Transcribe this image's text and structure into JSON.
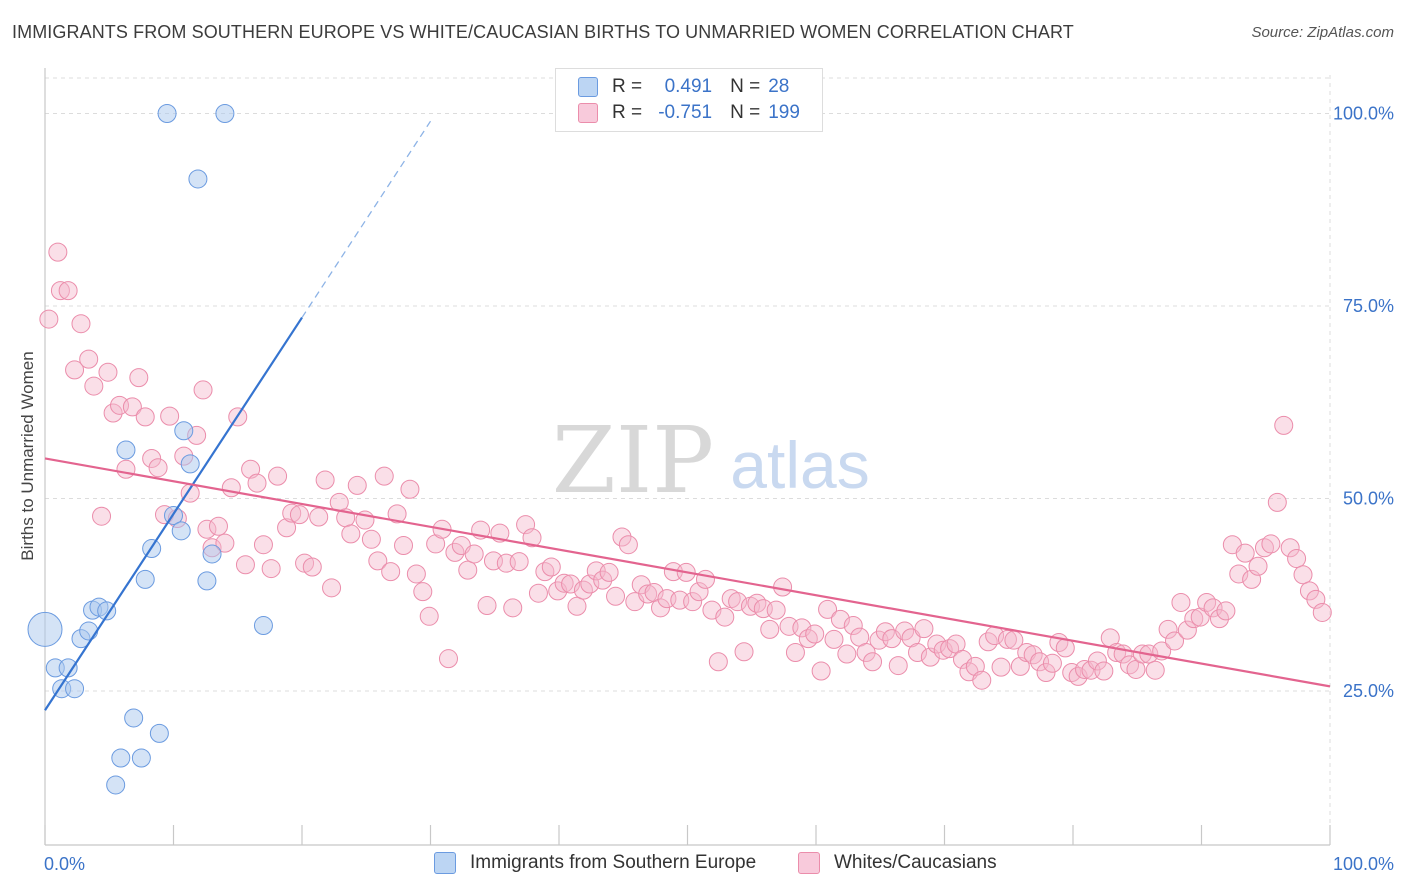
{
  "title": "IMMIGRANTS FROM SOUTHERN EUROPE VS WHITE/CAUCASIAN BIRTHS TO UNMARRIED WOMEN CORRELATION CHART",
  "source": "Source: ZipAtlas.com",
  "watermark": {
    "zip": "ZIP",
    "atlas": "atlas"
  },
  "legend": {
    "rows": [
      {
        "r_label": "R =",
        "r_value": "0.491",
        "n_label": "N =",
        "n_value": "28"
      },
      {
        "r_label": "R =",
        "r_value": "-0.751",
        "n_label": "N =",
        "n_value": "199"
      }
    ]
  },
  "bottom_legend": {
    "series1": "Immigrants from Southern Europe",
    "series2": "Whites/Caucasians"
  },
  "colors": {
    "blue_fill": "#a9c8ee",
    "blue_stroke": "#6b9be0",
    "blue_line": "#3574d0",
    "pink_fill": "#f4b9cc",
    "pink_stroke": "#eb8dab",
    "pink_line": "#e3648f",
    "tick_text": "#3b73c8",
    "grid": "#dcdcdc"
  },
  "chart_data": {
    "type": "scatter",
    "title": "IMMIGRANTS FROM SOUTHERN EUROPE VS WHITE/CAUCASIAN BIRTHS TO UNMARRIED WOMEN CORRELATION CHART",
    "xlabel": "Immigrants from Southern Europe",
    "ylabel": "Births to Unmarried Women",
    "xlim": [
      0,
      100
    ],
    "ylim": [
      5,
      105
    ],
    "x_tick_labels": [
      "0.0%",
      "100.0%"
    ],
    "y_ticks": [
      25,
      50,
      75,
      100
    ],
    "y_tick_labels": [
      "25.0%",
      "50.0%",
      "75.0%",
      "100.0%"
    ],
    "grid": true,
    "series": [
      {
        "name": "Immigrants from Southern Europe",
        "R": 0.491,
        "N": 28,
        "trend": {
          "x0": 0.0,
          "y0": 22.5,
          "x1": 20.0,
          "y1": 73.5,
          "dash_x1": 30.0,
          "dash_y1": 99.0
        },
        "points": [
          [
            0.0,
            33.0
          ],
          [
            0.8,
            28.0
          ],
          [
            1.3,
            25.3
          ],
          [
            1.8,
            28.0
          ],
          [
            2.3,
            25.3
          ],
          [
            2.8,
            31.8
          ],
          [
            3.4,
            32.8
          ],
          [
            3.7,
            35.5
          ],
          [
            4.2,
            35.9
          ],
          [
            4.8,
            35.4
          ],
          [
            5.5,
            12.8
          ],
          [
            5.9,
            16.3
          ],
          [
            6.3,
            56.3
          ],
          [
            6.9,
            21.5
          ],
          [
            7.5,
            16.3
          ],
          [
            7.8,
            39.5
          ],
          [
            8.3,
            43.5
          ],
          [
            8.9,
            19.5
          ],
          [
            9.5,
            100.0
          ],
          [
            10.0,
            47.8
          ],
          [
            10.6,
            45.8
          ],
          [
            10.8,
            58.8
          ],
          [
            11.3,
            54.5
          ],
          [
            11.9,
            91.5
          ],
          [
            12.6,
            39.3
          ],
          [
            13.0,
            42.8
          ],
          [
            14.0,
            100.0
          ],
          [
            17.0,
            33.5
          ]
        ]
      },
      {
        "name": "Whites/Caucasians",
        "R": -0.751,
        "N": 199,
        "trend": {
          "x0": 0.0,
          "y0": 55.2,
          "x1": 100.0,
          "y1": 25.6
        },
        "points": [
          [
            0.3,
            73.3
          ],
          [
            1.0,
            82.0
          ],
          [
            1.2,
            77.0
          ],
          [
            1.8,
            77.0
          ],
          [
            2.3,
            66.7
          ],
          [
            2.8,
            72.7
          ],
          [
            3.4,
            68.1
          ],
          [
            3.8,
            64.6
          ],
          [
            4.4,
            47.7
          ],
          [
            4.9,
            66.4
          ],
          [
            5.3,
            61.1
          ],
          [
            5.8,
            62.1
          ],
          [
            6.3,
            53.8
          ],
          [
            6.8,
            61.9
          ],
          [
            7.3,
            65.7
          ],
          [
            7.8,
            60.6
          ],
          [
            8.3,
            55.2
          ],
          [
            8.8,
            54.0
          ],
          [
            9.3,
            47.9
          ],
          [
            9.7,
            60.7
          ],
          [
            10.3,
            47.4
          ],
          [
            10.8,
            55.5
          ],
          [
            11.3,
            50.7
          ],
          [
            11.8,
            58.2
          ],
          [
            12.3,
            64.1
          ],
          [
            12.6,
            46.0
          ],
          [
            13.0,
            43.6
          ],
          [
            13.5,
            46.4
          ],
          [
            14.0,
            44.2
          ],
          [
            14.5,
            51.4
          ],
          [
            15.0,
            60.6
          ],
          [
            15.6,
            41.4
          ],
          [
            16.0,
            53.8
          ],
          [
            16.5,
            52.0
          ],
          [
            17.0,
            44.0
          ],
          [
            17.6,
            40.9
          ],
          [
            18.1,
            52.9
          ],
          [
            18.8,
            46.2
          ],
          [
            19.2,
            48.1
          ],
          [
            19.8,
            47.9
          ],
          [
            20.2,
            41.6
          ],
          [
            20.8,
            41.1
          ],
          [
            21.3,
            47.6
          ],
          [
            21.8,
            52.4
          ],
          [
            22.3,
            38.4
          ],
          [
            22.9,
            49.5
          ],
          [
            23.4,
            47.5
          ],
          [
            23.8,
            45.4
          ],
          [
            24.3,
            51.7
          ],
          [
            24.9,
            47.2
          ],
          [
            25.4,
            44.7
          ],
          [
            25.9,
            41.9
          ],
          [
            26.4,
            52.9
          ],
          [
            26.9,
            40.5
          ],
          [
            27.4,
            48.0
          ],
          [
            27.9,
            43.9
          ],
          [
            28.4,
            51.2
          ],
          [
            28.9,
            40.2
          ],
          [
            29.4,
            37.9
          ],
          [
            29.9,
            34.7
          ],
          [
            30.4,
            44.1
          ],
          [
            30.9,
            46.0
          ],
          [
            31.4,
            29.2
          ],
          [
            31.9,
            43.0
          ],
          [
            32.4,
            43.9
          ],
          [
            32.9,
            40.7
          ],
          [
            33.4,
            42.8
          ],
          [
            33.9,
            45.9
          ],
          [
            34.4,
            36.1
          ],
          [
            34.9,
            41.9
          ],
          [
            35.4,
            45.5
          ],
          [
            35.9,
            41.6
          ],
          [
            36.4,
            35.8
          ],
          [
            36.9,
            41.8
          ],
          [
            37.4,
            46.6
          ],
          [
            37.9,
            44.9
          ],
          [
            38.4,
            37.7
          ],
          [
            38.9,
            40.5
          ],
          [
            39.4,
            41.1
          ],
          [
            39.9,
            38.0
          ],
          [
            40.4,
            39.0
          ],
          [
            40.9,
            38.9
          ],
          [
            41.4,
            36.0
          ],
          [
            41.9,
            38.1
          ],
          [
            42.4,
            38.9
          ],
          [
            42.9,
            40.6
          ],
          [
            43.4,
            39.4
          ],
          [
            43.9,
            40.4
          ],
          [
            44.4,
            37.3
          ],
          [
            44.9,
            45.0
          ],
          [
            45.4,
            44.0
          ],
          [
            45.9,
            36.6
          ],
          [
            46.4,
            38.8
          ],
          [
            46.9,
            37.6
          ],
          [
            47.4,
            37.8
          ],
          [
            47.9,
            35.8
          ],
          [
            48.4,
            37.0
          ],
          [
            48.9,
            40.5
          ],
          [
            49.4,
            36.8
          ],
          [
            49.9,
            40.4
          ],
          [
            50.4,
            36.6
          ],
          [
            50.9,
            37.9
          ],
          [
            51.4,
            39.5
          ],
          [
            51.9,
            35.5
          ],
          [
            52.4,
            28.8
          ],
          [
            52.9,
            34.6
          ],
          [
            53.4,
            37.0
          ],
          [
            53.9,
            36.6
          ],
          [
            54.4,
            30.1
          ],
          [
            54.9,
            36.0
          ],
          [
            55.4,
            36.4
          ],
          [
            55.9,
            35.7
          ],
          [
            56.4,
            33.0
          ],
          [
            56.9,
            35.5
          ],
          [
            57.4,
            38.5
          ],
          [
            57.9,
            33.4
          ],
          [
            58.4,
            30.0
          ],
          [
            58.9,
            33.2
          ],
          [
            59.4,
            31.8
          ],
          [
            59.9,
            32.4
          ],
          [
            60.4,
            27.6
          ],
          [
            60.9,
            35.6
          ],
          [
            61.4,
            31.7
          ],
          [
            61.9,
            34.3
          ],
          [
            62.4,
            29.8
          ],
          [
            62.9,
            33.5
          ],
          [
            63.4,
            32.0
          ],
          [
            63.9,
            30.0
          ],
          [
            64.4,
            28.8
          ],
          [
            64.9,
            31.6
          ],
          [
            65.4,
            32.7
          ],
          [
            65.9,
            31.8
          ],
          [
            66.4,
            28.3
          ],
          [
            66.9,
            32.8
          ],
          [
            67.4,
            31.9
          ],
          [
            67.9,
            30.0
          ],
          [
            68.4,
            33.1
          ],
          [
            68.9,
            29.4
          ],
          [
            69.4,
            31.1
          ],
          [
            69.9,
            30.3
          ],
          [
            70.4,
            30.5
          ],
          [
            70.9,
            31.1
          ],
          [
            71.4,
            29.1
          ],
          [
            71.9,
            27.5
          ],
          [
            72.4,
            28.2
          ],
          [
            72.9,
            26.4
          ],
          [
            73.4,
            31.4
          ],
          [
            73.9,
            32.2
          ],
          [
            74.4,
            28.1
          ],
          [
            74.9,
            31.7
          ],
          [
            75.4,
            31.6
          ],
          [
            75.9,
            28.2
          ],
          [
            76.4,
            30.0
          ],
          [
            76.9,
            29.7
          ],
          [
            77.4,
            28.8
          ],
          [
            77.9,
            27.4
          ],
          [
            78.4,
            28.6
          ],
          [
            78.9,
            31.3
          ],
          [
            79.4,
            30.6
          ],
          [
            79.9,
            27.4
          ],
          [
            80.4,
            26.9
          ],
          [
            80.9,
            27.8
          ],
          [
            81.4,
            27.7
          ],
          [
            81.9,
            28.9
          ],
          [
            82.4,
            27.6
          ],
          [
            82.9,
            31.9
          ],
          [
            83.4,
            30.0
          ],
          [
            83.9,
            29.8
          ],
          [
            84.4,
            28.4
          ],
          [
            84.9,
            27.8
          ],
          [
            85.4,
            29.8
          ],
          [
            85.9,
            29.8
          ],
          [
            86.4,
            27.7
          ],
          [
            86.9,
            30.2
          ],
          [
            87.4,
            33.0
          ],
          [
            87.9,
            31.5
          ],
          [
            88.4,
            36.5
          ],
          [
            88.9,
            32.9
          ],
          [
            89.4,
            34.4
          ],
          [
            89.9,
            34.6
          ],
          [
            90.4,
            36.5
          ],
          [
            90.9,
            35.8
          ],
          [
            91.4,
            34.4
          ],
          [
            91.9,
            35.4
          ],
          [
            92.4,
            44.0
          ],
          [
            92.9,
            40.2
          ],
          [
            93.4,
            42.9
          ],
          [
            93.9,
            39.5
          ],
          [
            94.4,
            41.2
          ],
          [
            94.9,
            43.6
          ],
          [
            95.4,
            44.1
          ],
          [
            95.9,
            49.5
          ],
          [
            96.4,
            59.5
          ],
          [
            96.9,
            43.6
          ],
          [
            97.4,
            42.2
          ],
          [
            97.9,
            40.1
          ],
          [
            98.4,
            38.0
          ],
          [
            98.9,
            36.9
          ],
          [
            99.4,
            35.2
          ]
        ]
      }
    ]
  }
}
